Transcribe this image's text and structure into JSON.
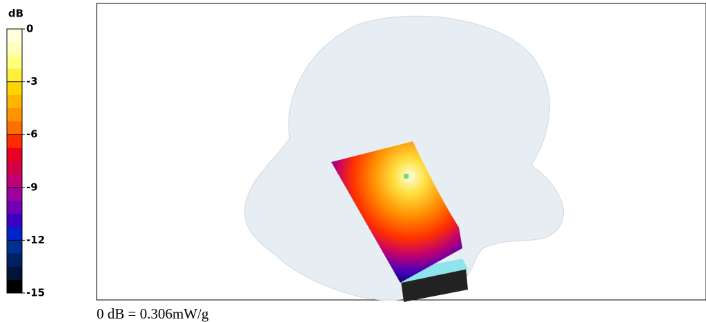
{
  "colorbar": {
    "title": "dB",
    "limits": [
      0,
      -15
    ],
    "ticks": [
      0,
      -3,
      -6,
      -9,
      -12,
      -15
    ],
    "colors": [
      "#ffffe0",
      "#ffffbc",
      "#ffff80",
      "#fff040",
      "#ffd400",
      "#ffb400",
      "#ff9400",
      "#ff6e00",
      "#ff2c00",
      "#ea0022",
      "#d40046",
      "#c00076",
      "#a000a0",
      "#7000b4",
      "#3c00c4",
      "#0024cc",
      "#003094",
      "#002064",
      "#001438",
      "#000000"
    ]
  },
  "caption": "0 dB = 0.306mW/g"
}
